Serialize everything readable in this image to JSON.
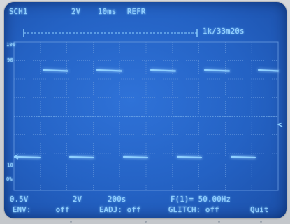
{
  "header": {
    "channel": "SCH1",
    "volts_div": "2V",
    "time_div": "10ms",
    "mode": "REFR",
    "record": "1k/33m20s"
  },
  "scale_markers": {
    "top": "100",
    "upper": "90",
    "lower": "10",
    "bottom": "0%"
  },
  "status_line": {
    "offset": "0.5V",
    "volts": "2V",
    "time": "200s",
    "frequency": "F(1)= 50.00Hz"
  },
  "softkeys": [
    {
      "label": "ENV:",
      "value": "off"
    },
    {
      "label": "EADJ:",
      "value": "off"
    },
    {
      "label": "GLITCH:",
      "value": "off"
    },
    {
      "label": "Quit",
      "value": ""
    }
  ],
  "colors": {
    "screen": "#2462c4",
    "trace": "#8fd0ff",
    "grid": "#5b8fd9"
  }
}
